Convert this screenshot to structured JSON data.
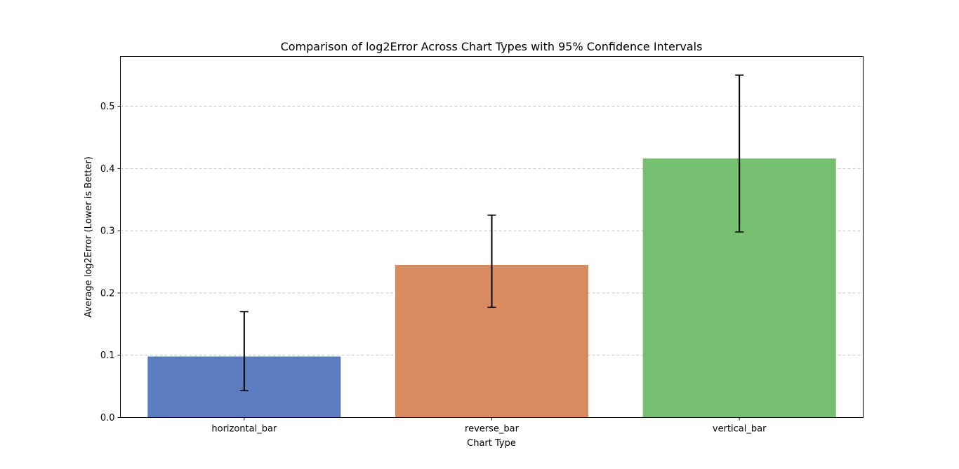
{
  "chart_data": {
    "type": "bar",
    "title": "Comparison of log2Error Across Chart Types with 95% Confidence Intervals",
    "xlabel": "Chart Type",
    "ylabel": "Average log2Error (Lower is Better)",
    "categories": [
      "horizontal_bar",
      "reverse_bar",
      "vertical_bar"
    ],
    "values": [
      0.098,
      0.245,
      0.416
    ],
    "ci_lower": [
      0.043,
      0.177,
      0.298
    ],
    "ci_upper": [
      0.17,
      0.325,
      0.55
    ],
    "colors": [
      "#5b7dbf",
      "#d98b5f",
      "#76bf70"
    ],
    "ylim": [
      0,
      0.58
    ],
    "yticks": [
      0.0,
      0.1,
      0.2,
      0.3,
      0.4,
      0.5
    ],
    "ytick_labels": [
      "0.0",
      "0.1",
      "0.2",
      "0.3",
      "0.4",
      "0.5"
    ],
    "grid": "y-dashed",
    "legend": "none"
  }
}
